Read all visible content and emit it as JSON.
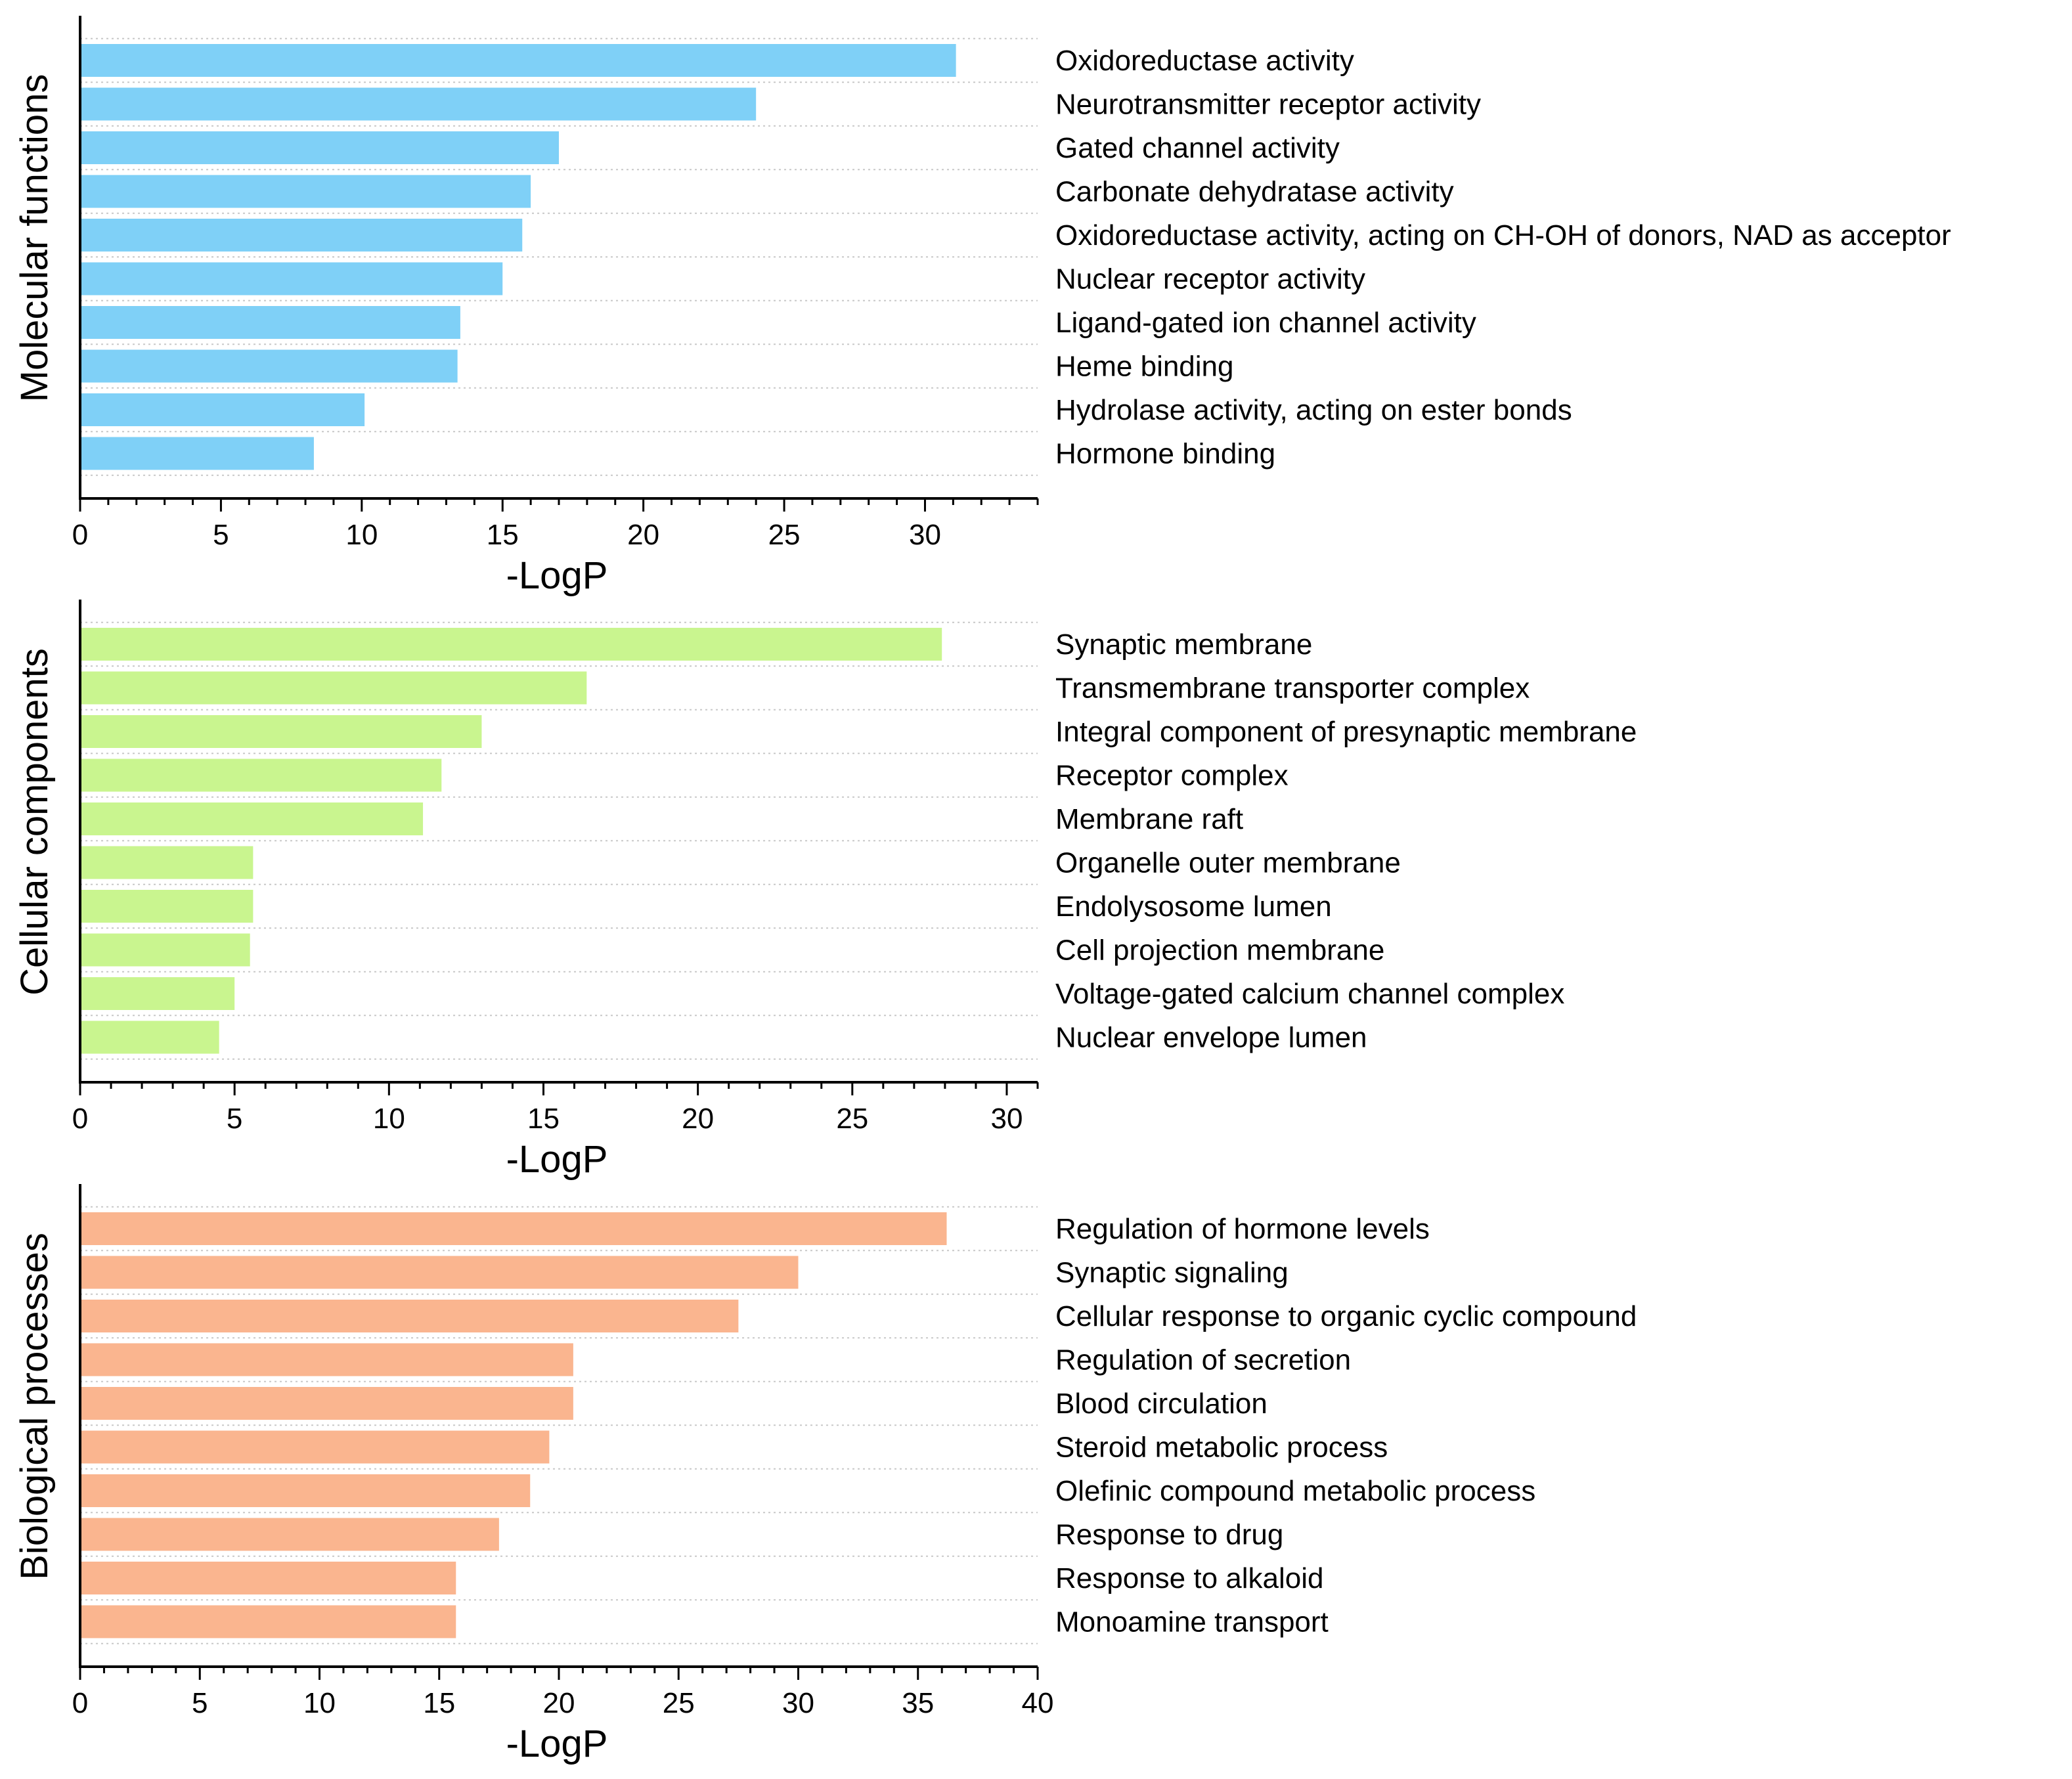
{
  "chart_data": [
    {
      "type": "bar",
      "orientation": "horizontal",
      "ylabel": "Molecular functions",
      "xlabel": "-LogP",
      "xlim": [
        0,
        34
      ],
      "xticks": [
        0,
        5,
        10,
        15,
        20,
        25,
        30
      ],
      "bar_color": "#7FD0F7",
      "categories": [
        "Oxidoreductase activity",
        "Neurotransmitter receptor activity",
        "Gated channel activity",
        "Carbonate dehydratase activity",
        "Oxidoreductase activity, acting on CH-OH of donors, NAD as acceptor",
        "Nuclear receptor activity",
        "Ligand-gated ion channel activity",
        "Heme binding",
        "Hydrolase activity, acting on ester bonds",
        "Hormone binding"
      ],
      "values": [
        31.1,
        24.0,
        17.0,
        16.0,
        15.7,
        15.0,
        13.5,
        13.4,
        10.1,
        8.3
      ]
    },
    {
      "type": "bar",
      "orientation": "horizontal",
      "ylabel": "Cellular components",
      "xlabel": "-LogP",
      "xlim": [
        0,
        31
      ],
      "xticks": [
        0,
        5,
        10,
        15,
        20,
        25,
        30
      ],
      "bar_color": "#C9F58F",
      "categories": [
        "Synaptic membrane",
        "Transmembrane transporter complex",
        "Integral component of presynaptic membrane",
        "Receptor complex",
        "Membrane raft",
        "Organelle outer membrane",
        "Endolysosome lumen",
        "Cell projection membrane",
        "Voltage-gated calcium channel complex",
        "Nuclear envelope lumen"
      ],
      "values": [
        27.9,
        16.4,
        13.0,
        11.7,
        11.1,
        5.6,
        5.6,
        5.5,
        5.0,
        4.5
      ]
    },
    {
      "type": "bar",
      "orientation": "horizontal",
      "ylabel": "Biological processes",
      "xlabel": "-LogP",
      "xlim": [
        0,
        40
      ],
      "xticks": [
        0,
        5,
        10,
        15,
        20,
        25,
        30,
        35,
        40
      ],
      "bar_color": "#FAB58F",
      "categories": [
        "Regulation of hormone levels",
        "Synaptic signaling",
        "Cellular response to organic cyclic compound",
        "Regulation of secretion",
        "Blood circulation",
        "Steroid metabolic process",
        "Olefinic compound metabolic process",
        "Response to drug",
        "Response to alkaloid",
        "Monoamine transport"
      ],
      "values": [
        36.2,
        30.0,
        27.5,
        20.6,
        20.6,
        19.6,
        18.8,
        17.5,
        15.7,
        15.7
      ]
    }
  ]
}
